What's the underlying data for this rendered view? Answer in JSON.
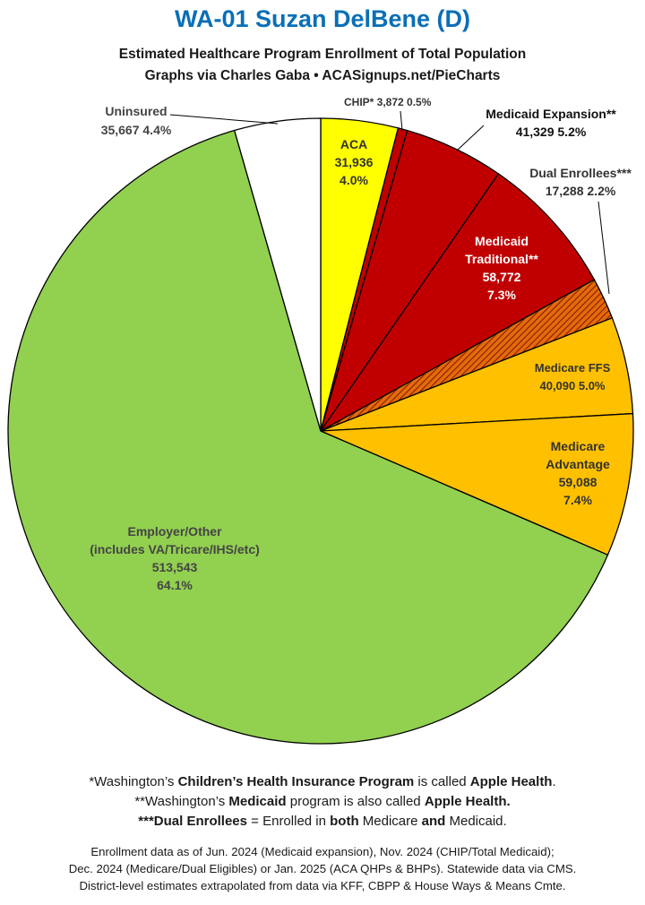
{
  "header": {
    "title": "WA-01 Suzan DelBene (D)",
    "subtitle1": "Estimated Healthcare Program Enrollment of Total Population",
    "subtitle2": "Graphs via Charles Gaba  •  ACASignups.net/PieCharts"
  },
  "chart_data": {
    "type": "pie",
    "title": "WA-01 Suzan DelBene (D)",
    "start": "12 o'clock, clockwise",
    "slices": [
      {
        "name": "ACA",
        "value": 31936,
        "percent": 4.0,
        "color": "#ffff00",
        "value_label": "31,936",
        "pct_label": "4.0%"
      },
      {
        "name": "CHIP*",
        "value": 3872,
        "percent": 0.5,
        "color": "#c00000",
        "value_label": "3,872",
        "pct_label": "0.5%"
      },
      {
        "name": "Medicaid Expansion**",
        "value": 41329,
        "percent": 5.2,
        "color": "#c00000",
        "value_label": "41,329",
        "pct_label": "5.2%"
      },
      {
        "name": "Medicaid Traditional**",
        "value": 58772,
        "percent": 7.3,
        "color": "#c00000",
        "value_label": "58,772",
        "pct_label": "7.3%"
      },
      {
        "name": "Dual Enrollees***",
        "value": 17288,
        "percent": 2.2,
        "color": "#e36c0a",
        "pattern": "hatched",
        "value_label": "17,288",
        "pct_label": "2.2%"
      },
      {
        "name": "Medicare FFS",
        "value": 40090,
        "percent": 5.0,
        "color": "#ffc000",
        "value_label": "40,090",
        "pct_label": "5.0%"
      },
      {
        "name": "Medicare Advantage",
        "value": 59088,
        "percent": 7.4,
        "color": "#ffc000",
        "value_label": "59,088",
        "pct_label": "7.4%"
      },
      {
        "name": "Employer/Other (includes VA/Tricare/IHS/etc)",
        "value": 513543,
        "percent": 64.1,
        "color": "#92d050",
        "value_label": "513,543",
        "pct_label": "64.1%"
      },
      {
        "name": "Uninsured",
        "value": 35667,
        "percent": 4.4,
        "color": "#ffffff",
        "value_label": "35,667",
        "pct_label": "4.4%"
      }
    ],
    "labels": {
      "aca": [
        "ACA",
        "31,936",
        "4.0%"
      ],
      "chip": "CHIP* 3,872 0.5%",
      "medicaid_expansion": [
        "Medicaid Expansion**",
        "41,329 5.2%"
      ],
      "dual": [
        "Dual Enrollees***",
        "17,288 2.2%"
      ],
      "medicaid_traditional": [
        "Medicaid",
        "Traditional**",
        "58,772",
        "7.3%"
      ],
      "medicare_ffs": [
        "Medicare FFS",
        "40,090 5.0%"
      ],
      "medicare_advantage": [
        "Medicare",
        "Advantage",
        "59,088",
        "7.4%"
      ],
      "employer": [
        "Employer/Other",
        "(includes VA/Tricare/IHS/etc)",
        "513,543",
        "64.1%"
      ],
      "uninsured": [
        "Uninsured",
        "35,667 4.4%"
      ]
    }
  },
  "notes": {
    "n1": [
      "*Washington’s ",
      "Children’s Health Insurance Program",
      " is called ",
      "Apple Health",
      "."
    ],
    "n2": [
      "**Washington’s ",
      "Medicaid",
      " program is also called ",
      "Apple Health."
    ],
    "n3": [
      "***Dual Enrollees",
      " = Enrolled in ",
      "both",
      " Medicare ",
      "and",
      " Medicaid."
    ]
  },
  "sources": {
    "s1": "Enrollment data as of Jun. 2024 (Medicaid expansion), Nov. 2024 (CHIP/Total Medicaid);",
    "s2": "Dec. 2024 (Medicare/Dual Eligibles) or Jan. 2025 (ACA QHPs & BHPs). Statewide data via CMS.",
    "s3": "District-level estimates extrapolated from data via KFF, CBPP & House Ways & Means Cmte."
  }
}
